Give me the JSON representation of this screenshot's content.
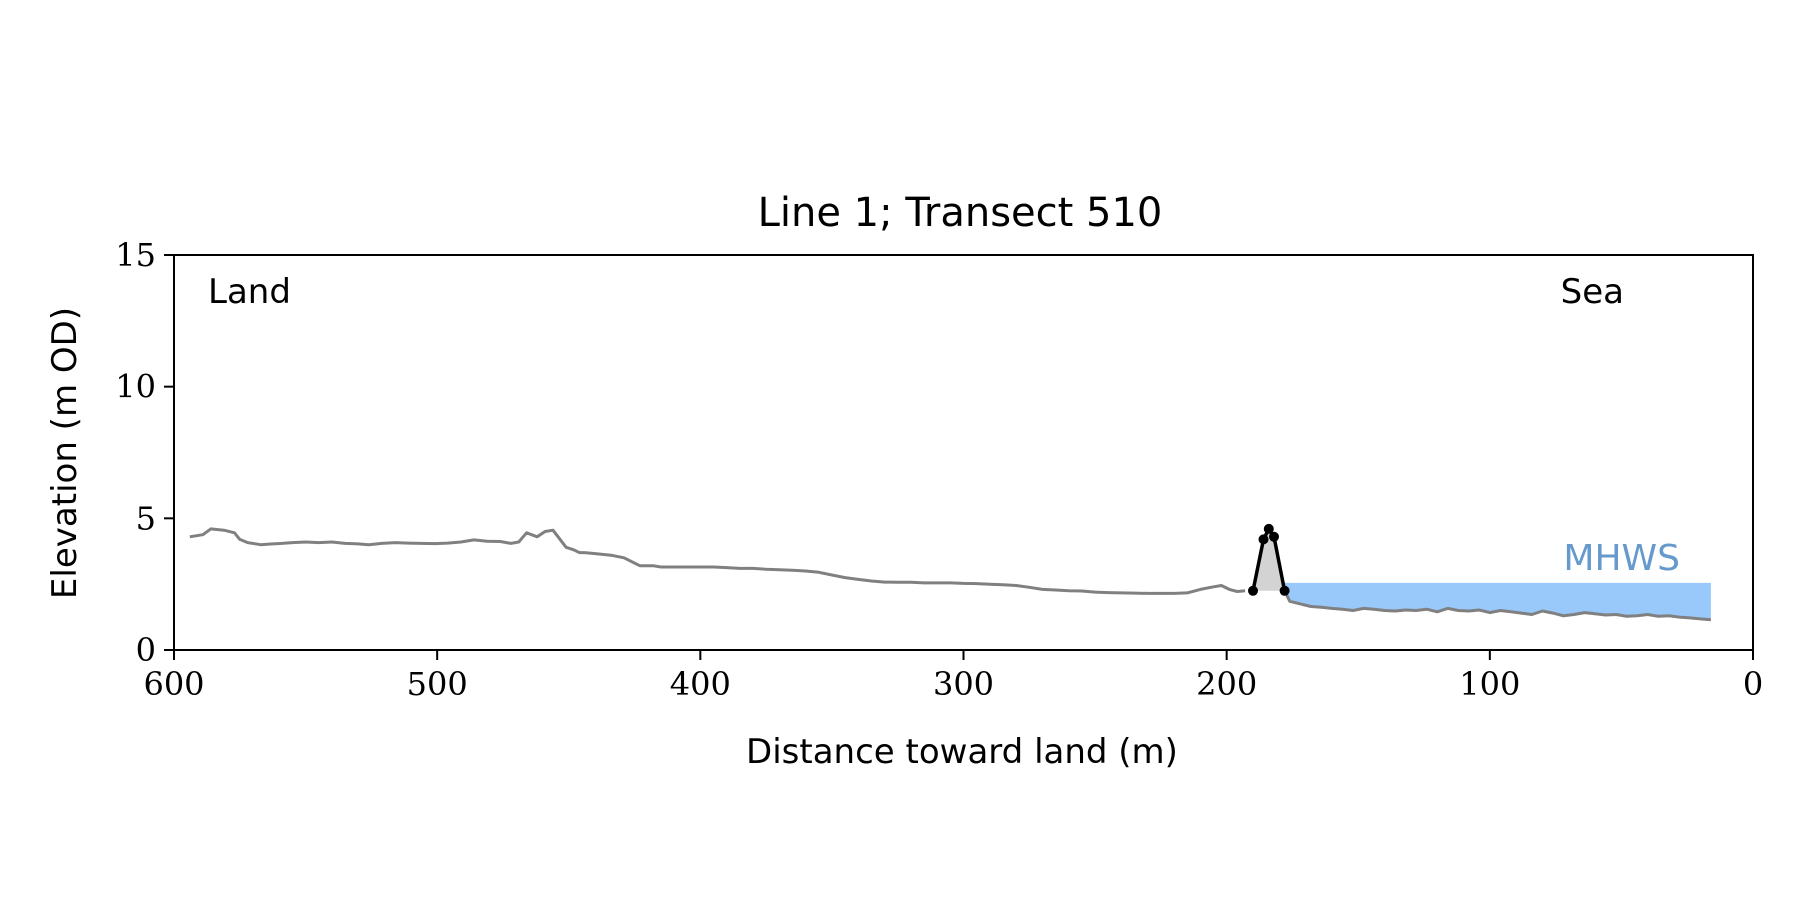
{
  "chart_data": {
    "type": "line",
    "title": "Line 1; Transect 510",
    "xlabel": "Distance toward land (m)",
    "ylabel": "Elevation (m OD)",
    "xlim": [
      600,
      0
    ],
    "ylim": [
      0,
      15
    ],
    "x_ticks": [
      "600",
      "500",
      "400",
      "300",
      "200",
      "100",
      "0"
    ],
    "y_ticks": [
      "0",
      "5",
      "10",
      "15"
    ],
    "grid": false,
    "annotations": {
      "land": "Land",
      "sea": "Sea",
      "mhws": "MHWS"
    },
    "mhws_level": 2.55,
    "colors": {
      "profile": "#808080",
      "dune": "#000000",
      "dune_fill": "#d3d3d3",
      "water": "#99c9fa",
      "mhws_text": "#6699cc"
    },
    "profile": {
      "x": [
        594,
        589,
        586,
        581,
        577,
        575,
        572,
        567,
        564,
        559,
        555,
        550,
        545,
        540,
        535,
        530,
        526,
        521,
        516,
        511,
        506,
        501,
        496,
        491,
        486,
        481,
        476,
        472,
        469,
        466,
        462,
        459,
        456,
        451,
        448,
        446,
        444,
        439,
        434,
        429,
        423,
        418,
        415,
        410,
        405,
        400,
        395,
        390,
        385,
        380,
        375,
        370,
        365,
        360,
        355,
        350,
        345,
        340,
        335,
        330,
        325,
        320,
        315,
        310,
        305,
        300,
        295,
        290,
        285,
        280,
        275,
        270,
        265,
        260,
        255,
        250,
        245,
        240,
        235,
        230,
        225,
        220,
        215,
        210,
        205,
        202,
        199,
        196,
        193
      ],
      "y": [
        4.3,
        4.38,
        4.6,
        4.55,
        4.45,
        4.2,
        4.08,
        4.0,
        4.02,
        4.05,
        4.08,
        4.1,
        4.08,
        4.1,
        4.05,
        4.03,
        4.0,
        4.05,
        4.08,
        4.06,
        4.05,
        4.04,
        4.06,
        4.1,
        4.18,
        4.13,
        4.12,
        4.05,
        4.1,
        4.45,
        4.3,
        4.5,
        4.55,
        3.9,
        3.8,
        3.7,
        3.7,
        3.65,
        3.6,
        3.5,
        3.2,
        3.2,
        3.15,
        3.15,
        3.15,
        3.15,
        3.15,
        3.13,
        3.1,
        3.1,
        3.07,
        3.05,
        3.03,
        3.0,
        2.95,
        2.85,
        2.75,
        2.68,
        2.62,
        2.58,
        2.57,
        2.57,
        2.55,
        2.55,
        2.55,
        2.53,
        2.52,
        2.5,
        2.48,
        2.45,
        2.38,
        2.3,
        2.28,
        2.25,
        2.24,
        2.2,
        2.18,
        2.17,
        2.16,
        2.15,
        2.15,
        2.15,
        2.17,
        2.3,
        2.4,
        2.45,
        2.3,
        2.22,
        2.25
      ]
    },
    "dune": {
      "x": [
        190,
        186,
        184,
        182,
        178
      ],
      "y": [
        2.25,
        4.2,
        4.6,
        4.3,
        2.25
      ]
    },
    "foreshore": {
      "x": [
        178,
        176,
        172,
        168,
        164,
        160,
        156,
        152,
        148,
        144,
        140,
        136,
        132,
        128,
        124,
        120,
        116,
        112,
        108,
        104,
        100,
        96,
        92,
        88,
        84,
        80,
        76,
        72,
        68,
        64,
        60,
        56,
        52,
        48,
        44,
        40,
        36,
        32,
        28,
        24,
        20,
        16
      ],
      "y": [
        2.25,
        1.85,
        1.75,
        1.65,
        1.62,
        1.58,
        1.55,
        1.5,
        1.58,
        1.55,
        1.5,
        1.48,
        1.52,
        1.5,
        1.55,
        1.45,
        1.58,
        1.5,
        1.48,
        1.52,
        1.42,
        1.5,
        1.45,
        1.4,
        1.35,
        1.48,
        1.4,
        1.3,
        1.35,
        1.42,
        1.38,
        1.33,
        1.35,
        1.28,
        1.3,
        1.35,
        1.28,
        1.3,
        1.25,
        1.22,
        1.18,
        1.15
      ]
    }
  }
}
